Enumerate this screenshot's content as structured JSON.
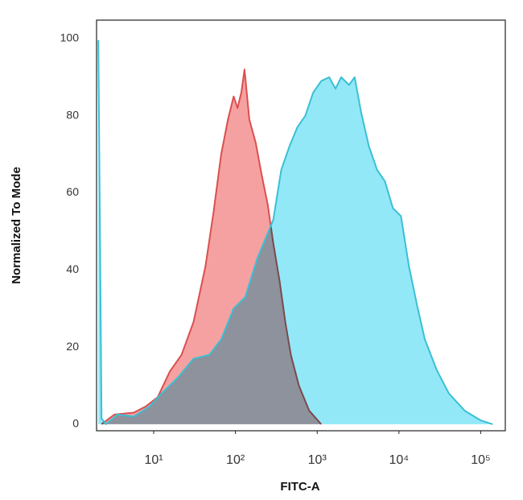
{
  "chart_data": {
    "type": "area",
    "x_label": "FITC-A",
    "y_label": "Normalized To Mode",
    "x_scale": "log",
    "xlim": [
      2,
      200000
    ],
    "xticks": [
      {
        "value": 10,
        "label": "10¹"
      },
      {
        "value": 100,
        "label": "10²"
      },
      {
        "value": 1000,
        "label": "10³"
      },
      {
        "value": 10000,
        "label": "10⁴"
      },
      {
        "value": 100000,
        "label": "10⁵"
      }
    ],
    "ylim": [
      -1.7,
      104.8
    ],
    "yticks": [
      0,
      20,
      40,
      60,
      80,
      100
    ],
    "grid": false,
    "series": [
      {
        "color": "#d9504f",
        "fill": "#f6a1a1",
        "x": [
          2.3,
          3.3,
          5.7,
          8.0,
          11.2,
          15.7,
          21.9,
          30.7,
          43,
          54,
          67,
          81,
          95,
          106,
          118,
          129,
          148,
          177,
          208,
          248,
          290,
          348,
          407,
          476,
          597,
          798,
          1120
        ],
        "values": [
          0,
          2.5,
          3,
          4.6,
          7,
          13.6,
          18,
          26.5,
          41,
          55,
          70,
          79,
          85,
          82,
          86,
          92,
          79,
          73,
          65,
          57,
          47,
          37,
          26.5,
          18,
          10,
          3.5,
          0
        ]
      },
      {
        "color": "#3bbfd4",
        "fill": "#92e8f7",
        "x": [
          2.1,
          2.3,
          2.6,
          3.6,
          5.7,
          8.9,
          12.5,
          19.6,
          30.7,
          48,
          67,
          95,
          132,
          185,
          232,
          290,
          364,
          456,
          571,
          715,
          893,
          1120,
          1400,
          1675,
          1963,
          2455,
          2875,
          3440,
          4305,
          5395,
          6745,
          8450,
          10570,
          13240,
          16600,
          20750,
          29050,
          40700,
          63800,
          100000,
          140000
        ],
        "values": [
          99.6,
          1.5,
          0,
          2.5,
          2,
          4.6,
          8,
          12,
          17,
          18,
          22,
          30,
          33,
          43,
          48,
          53,
          66,
          72,
          77,
          80,
          86,
          89,
          90,
          87,
          90,
          88,
          90,
          81,
          72,
          66,
          63,
          56,
          54,
          41,
          31,
          22,
          14,
          8,
          3.5,
          1,
          0
        ]
      }
    ]
  }
}
